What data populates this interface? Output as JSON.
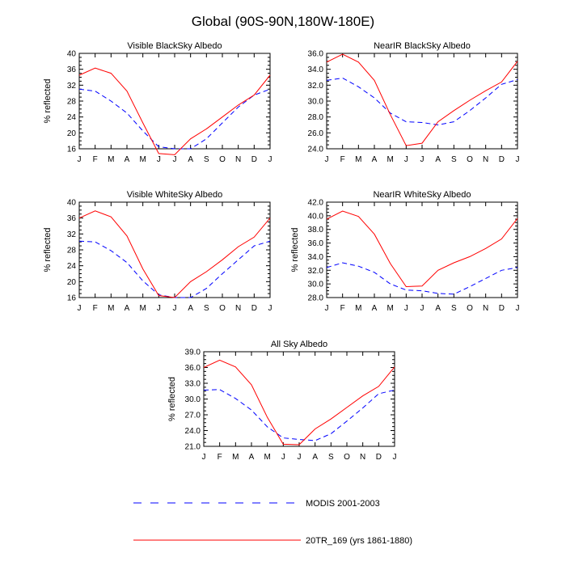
{
  "figure": {
    "title": "Global (90S-90N,180W-180E)"
  },
  "legend": {
    "entries": [
      {
        "label": "MODIS 2001-2003",
        "color": "#0000ff",
        "dashed": true
      },
      {
        "label": "20TR_169 (yrs 1861-1880)",
        "color": "#ff0000",
        "dashed": false
      }
    ]
  },
  "chart_data": [
    {
      "type": "line",
      "title": "Visible BlackSky Albedo",
      "xlabel": "",
      "ylabel": "% reflected",
      "categories": [
        "J",
        "F",
        "M",
        "A",
        "M",
        "J",
        "J",
        "A",
        "S",
        "O",
        "N",
        "D",
        "J"
      ],
      "ylim": [
        16,
        40
      ],
      "yticks": [
        "16",
        "20",
        "24",
        "28",
        "32",
        "36",
        "40"
      ],
      "series": [
        {
          "name": "MODIS 2001-2003",
          "values": [
            31.0,
            30.5,
            28.0,
            25.0,
            20.5,
            16.5,
            16.0,
            16.0,
            18.5,
            22.5,
            26.5,
            29.5,
            31.0
          ],
          "color": "#0000ff",
          "dashed": true
        },
        {
          "name": "20TR_169 (yrs 1861-1880)",
          "values": [
            34.5,
            36.3,
            35.0,
            30.5,
            22.5,
            14.8,
            14.5,
            18.5,
            21.0,
            24.0,
            27.0,
            29.5,
            34.5
          ],
          "color": "#ff0000",
          "dashed": false
        }
      ]
    },
    {
      "type": "line",
      "title": "NearIR BlackSky Albedo",
      "xlabel": "",
      "ylabel": "",
      "categories": [
        "J",
        "F",
        "M",
        "A",
        "M",
        "J",
        "J",
        "A",
        "S",
        "O",
        "N",
        "D",
        "J"
      ],
      "ylim": [
        24,
        36
      ],
      "yticks": [
        "24.0",
        "26.0",
        "28.0",
        "30.0",
        "32.0",
        "34.0",
        "36.0"
      ],
      "series": [
        {
          "name": "MODIS 2001-2003",
          "values": [
            32.6,
            32.9,
            31.8,
            30.4,
            28.5,
            27.4,
            27.3,
            27.0,
            27.4,
            28.8,
            30.4,
            32.1,
            32.7
          ],
          "color": "#0000ff",
          "dashed": true
        },
        {
          "name": "20TR_169 (yrs 1861-1880)",
          "values": [
            34.9,
            35.9,
            34.9,
            32.6,
            28.3,
            24.4,
            24.7,
            27.4,
            28.8,
            30.1,
            31.3,
            32.4,
            35.0
          ],
          "color": "#ff0000",
          "dashed": false
        }
      ]
    },
    {
      "type": "line",
      "title": "Visible WhiteSky Albedo",
      "xlabel": "",
      "ylabel": "% reflected",
      "categories": [
        "J",
        "F",
        "M",
        "A",
        "M",
        "J",
        "J",
        "A",
        "S",
        "O",
        "N",
        "D",
        "J"
      ],
      "ylim": [
        16,
        40
      ],
      "yticks": [
        "16",
        "20",
        "24",
        "28",
        "32",
        "36",
        "40"
      ],
      "series": [
        {
          "name": "MODIS 2001-2003",
          "values": [
            30.2,
            30.0,
            27.8,
            24.8,
            20.2,
            16.7,
            16.0,
            16.0,
            18.3,
            22.0,
            25.5,
            29.0,
            30.2
          ],
          "color": "#0000ff",
          "dashed": true
        },
        {
          "name": "20TR_169 (yrs 1861-1880)",
          "values": [
            36.0,
            37.8,
            36.3,
            31.5,
            23.2,
            16.5,
            16.0,
            20.0,
            22.5,
            25.5,
            28.8,
            31.2,
            36.0
          ],
          "color": "#ff0000",
          "dashed": false
        }
      ]
    },
    {
      "type": "line",
      "title": "NearIR WhiteSky Albedo",
      "xlabel": "",
      "ylabel": "% reflected",
      "categories": [
        "J",
        "F",
        "M",
        "A",
        "M",
        "J",
        "J",
        "A",
        "S",
        "O",
        "N",
        "D",
        "J"
      ],
      "ylim": [
        28,
        42
      ],
      "yticks": [
        "28.0",
        "30.0",
        "32.0",
        "34.0",
        "36.0",
        "38.0",
        "40.0",
        "42.0"
      ],
      "series": [
        {
          "name": "MODIS 2001-2003",
          "values": [
            32.4,
            33.1,
            32.6,
            31.7,
            30.0,
            29.1,
            29.0,
            28.6,
            28.5,
            29.6,
            30.8,
            32.0,
            32.4
          ],
          "color": "#0000ff",
          "dashed": true
        },
        {
          "name": "20TR_169 (yrs 1861-1880)",
          "values": [
            39.5,
            40.7,
            39.9,
            37.3,
            33.0,
            29.6,
            29.7,
            32.0,
            33.1,
            34.0,
            35.2,
            36.6,
            39.6
          ],
          "color": "#ff0000",
          "dashed": false
        }
      ]
    },
    {
      "type": "line",
      "title": "All Sky Albedo",
      "xlabel": "",
      "ylabel": "% reflected",
      "categories": [
        "J",
        "F",
        "M",
        "A",
        "M",
        "J",
        "J",
        "A",
        "S",
        "O",
        "N",
        "D",
        "J"
      ],
      "ylim": [
        21,
        39
      ],
      "yticks": [
        "21.0",
        "24.0",
        "27.0",
        "30.0",
        "33.0",
        "36.0",
        "39.0"
      ],
      "series": [
        {
          "name": "MODIS 2001-2003",
          "values": [
            31.7,
            31.8,
            30.1,
            27.9,
            24.7,
            22.6,
            22.3,
            22.1,
            23.4,
            25.8,
            28.3,
            31.0,
            31.7
          ],
          "color": "#0000ff",
          "dashed": true
        },
        {
          "name": "20TR_169 (yrs 1861-1880)",
          "values": [
            36.0,
            37.4,
            36.1,
            32.7,
            26.5,
            21.4,
            21.3,
            24.3,
            26.2,
            28.4,
            30.6,
            32.4,
            36.1
          ],
          "color": "#ff0000",
          "dashed": false
        }
      ]
    }
  ]
}
